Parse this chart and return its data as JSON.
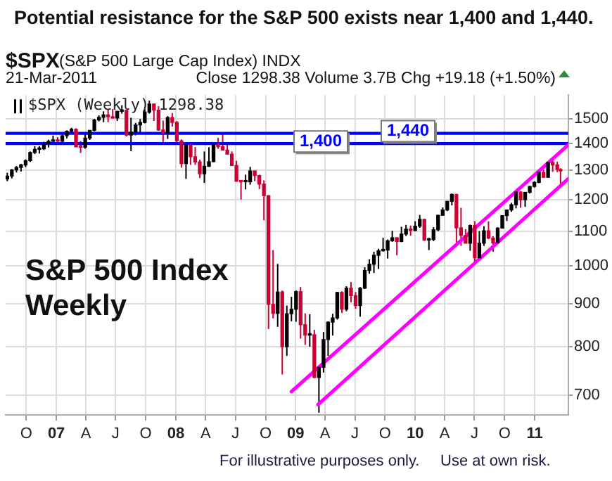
{
  "chart_data": {
    "type": "candlestick",
    "title": "Potential resistance for the S&P 500 exists near 1,400 and 1,440.",
    "annotations": [
      "$SPX",
      "(S&P 500 Large Cap Index) INDX",
      "21-Mar-2011",
      "Close 1298.38  Volume 3.7B  Chg +19.18 (+1.50%)",
      "S&P 500 Index Weekly",
      "For illustrative purposes only.",
      "Use at own risk."
    ],
    "xlim": [
      "2006-07-30",
      "2011-04-14"
    ],
    "xticks": [
      {
        "value": "2006-10-01",
        "label": "O"
      },
      {
        "value": "2007-01-01",
        "label": "07"
      },
      {
        "value": "2007-04-01",
        "label": "A"
      },
      {
        "value": "2007-07-01",
        "label": "J"
      },
      {
        "value": "2007-10-01",
        "label": "O"
      },
      {
        "value": "2008-01-01",
        "label": "08"
      },
      {
        "value": "2008-04-01",
        "label": "A"
      },
      {
        "value": "2008-07-01",
        "label": "J"
      },
      {
        "value": "2008-10-01",
        "label": "O"
      },
      {
        "value": "2009-01-01",
        "label": "09"
      },
      {
        "value": "2009-04-01",
        "label": "A"
      },
      {
        "value": "2009-07-01",
        "label": "J"
      },
      {
        "value": "2009-10-01",
        "label": "O"
      },
      {
        "value": "2010-01-01",
        "label": "10"
      },
      {
        "value": "2010-04-01",
        "label": "A"
      },
      {
        "value": "2010-07-01",
        "label": "J"
      },
      {
        "value": "2010-10-01",
        "label": "O"
      },
      {
        "value": "2011-01-01",
        "label": "11"
      }
    ],
    "ylim": [
      663,
      1600
    ],
    "yticks": [
      700,
      800,
      900,
      1000,
      1100,
      1200,
      1300,
      1400,
      1500
    ],
    "log": "y",
    "grid": true,
    "legend": "top left",
    "ref_lines": [
      {
        "axis": "y",
        "value": 1440,
        "label": "1,440",
        "color": "#0000ff"
      },
      {
        "axis": "y",
        "value": 1400,
        "label": "1,400",
        "color": "#0000ff"
      }
    ],
    "series": [
      {
        "name": "$SPX (Weekly) 1298.38",
        "x": [
          "2006-08-04",
          "2006-08-18",
          "2006-09-01",
          "2006-09-15",
          "2006-09-29",
          "2006-10-13",
          "2006-10-27",
          "2006-11-10",
          "2006-11-24",
          "2006-12-08",
          "2006-12-22",
          "2007-01-05",
          "2007-01-19",
          "2007-02-02",
          "2007-02-16",
          "2007-03-02",
          "2007-03-16",
          "2007-03-30",
          "2007-04-13",
          "2007-04-27",
          "2007-05-11",
          "2007-05-25",
          "2007-06-08",
          "2007-06-22",
          "2007-07-06",
          "2007-07-20",
          "2007-08-03",
          "2007-08-17",
          "2007-08-31",
          "2007-09-14",
          "2007-09-28",
          "2007-10-12",
          "2007-10-26",
          "2007-11-09",
          "2007-11-23",
          "2007-12-07",
          "2007-12-21",
          "2008-01-04",
          "2008-01-18",
          "2008-02-01",
          "2008-02-15",
          "2008-02-29",
          "2008-03-14",
          "2008-03-28",
          "2008-04-11",
          "2008-04-25",
          "2008-05-09",
          "2008-05-23",
          "2008-06-06",
          "2008-06-20",
          "2008-07-04",
          "2008-07-18",
          "2008-08-01",
          "2008-08-15",
          "2008-08-29",
          "2008-09-12",
          "2008-09-26",
          "2008-10-10",
          "2008-10-24",
          "2008-11-07",
          "2008-11-21",
          "2008-12-05",
          "2008-12-19",
          "2009-01-02",
          "2009-01-16",
          "2009-01-30",
          "2009-02-13",
          "2009-02-27",
          "2009-03-13",
          "2009-03-27",
          "2009-04-10",
          "2009-04-24",
          "2009-05-08",
          "2009-05-22",
          "2009-06-05",
          "2009-06-19",
          "2009-07-03",
          "2009-07-17",
          "2009-07-31",
          "2009-08-14",
          "2009-08-28",
          "2009-09-11",
          "2009-09-25",
          "2009-10-09",
          "2009-10-23",
          "2009-11-06",
          "2009-11-20",
          "2009-12-04",
          "2009-12-18",
          "2010-01-01",
          "2010-01-15",
          "2010-01-29",
          "2010-02-12",
          "2010-02-26",
          "2010-03-12",
          "2010-03-26",
          "2010-04-09",
          "2010-04-23",
          "2010-05-07",
          "2010-05-21",
          "2010-06-04",
          "2010-06-18",
          "2010-07-02",
          "2010-07-16",
          "2010-07-30",
          "2010-08-13",
          "2010-08-27",
          "2010-09-10",
          "2010-09-24",
          "2010-10-08",
          "2010-10-22",
          "2010-11-05",
          "2010-11-19",
          "2010-12-03",
          "2010-12-17",
          "2010-12-31",
          "2011-01-14",
          "2011-01-28",
          "2011-02-11",
          "2011-02-25",
          "2011-03-11",
          "2011-03-21"
        ],
        "ohlc": [
          [
            1270,
            1292,
            1262,
            1280
          ],
          [
            1280,
            1305,
            1272,
            1302
          ],
          [
            1302,
            1316,
            1293,
            1311
          ],
          [
            1311,
            1324,
            1296,
            1320
          ],
          [
            1320,
            1340,
            1312,
            1336
          ],
          [
            1336,
            1370,
            1331,
            1366
          ],
          [
            1366,
            1390,
            1360,
            1378
          ],
          [
            1378,
            1390,
            1362,
            1380
          ],
          [
            1380,
            1407,
            1375,
            1400
          ],
          [
            1400,
            1415,
            1385,
            1409
          ],
          [
            1409,
            1431,
            1402,
            1410
          ],
          [
            1410,
            1425,
            1398,
            1409
          ],
          [
            1409,
            1441,
            1405,
            1430
          ],
          [
            1430,
            1452,
            1420,
            1448
          ],
          [
            1448,
            1462,
            1440,
            1456
          ],
          [
            1456,
            1460,
            1386,
            1387
          ],
          [
            1387,
            1410,
            1364,
            1386
          ],
          [
            1386,
            1438,
            1380,
            1421
          ],
          [
            1421,
            1453,
            1414,
            1452
          ],
          [
            1452,
            1498,
            1448,
            1494
          ],
          [
            1494,
            1513,
            1488,
            1505
          ],
          [
            1505,
            1530,
            1485,
            1515
          ],
          [
            1515,
            1540,
            1485,
            1507
          ],
          [
            1507,
            1540,
            1500,
            1502
          ],
          [
            1502,
            1532,
            1490,
            1530
          ],
          [
            1530,
            1556,
            1520,
            1534
          ],
          [
            1534,
            1536,
            1427,
            1433
          ],
          [
            1433,
            1503,
            1371,
            1445
          ],
          [
            1445,
            1482,
            1432,
            1474
          ],
          [
            1474,
            1498,
            1439,
            1484
          ],
          [
            1484,
            1538,
            1480,
            1527
          ],
          [
            1527,
            1576,
            1520,
            1561
          ],
          [
            1561,
            1562,
            1490,
            1535
          ],
          [
            1535,
            1552,
            1450,
            1453
          ],
          [
            1453,
            1492,
            1406,
            1440
          ],
          [
            1440,
            1510,
            1418,
            1504
          ],
          [
            1504,
            1523,
            1467,
            1484
          ],
          [
            1484,
            1490,
            1406,
            1411
          ],
          [
            1411,
            1416,
            1310,
            1325
          ],
          [
            1325,
            1396,
            1270,
            1395
          ],
          [
            1395,
            1399,
            1320,
            1350
          ],
          [
            1350,
            1387,
            1320,
            1331
          ],
          [
            1331,
            1339,
            1273,
            1288
          ],
          [
            1288,
            1370,
            1256,
            1315
          ],
          [
            1315,
            1386,
            1313,
            1332
          ],
          [
            1332,
            1400,
            1330,
            1398
          ],
          [
            1398,
            1422,
            1380,
            1388
          ],
          [
            1388,
            1440,
            1373,
            1375
          ],
          [
            1375,
            1406,
            1358,
            1360
          ],
          [
            1360,
            1370,
            1316,
            1318
          ],
          [
            1318,
            1335,
            1260,
            1262
          ],
          [
            1262,
            1266,
            1200,
            1260
          ],
          [
            1260,
            1285,
            1234,
            1260
          ],
          [
            1260,
            1313,
            1250,
            1298
          ],
          [
            1298,
            1300,
            1262,
            1282
          ],
          [
            1282,
            1285,
            1235,
            1252
          ],
          [
            1252,
            1265,
            1133,
            1213
          ],
          [
            1213,
            1214,
            840,
            899
          ],
          [
            899,
            1044,
            865,
            877
          ],
          [
            877,
            1005,
            845,
            930
          ],
          [
            930,
            934,
            741,
            800
          ],
          [
            800,
            896,
            780,
            876
          ],
          [
            876,
            918,
            858,
            887
          ],
          [
            887,
            934,
            857,
            931
          ],
          [
            931,
            943,
            818,
            850
          ],
          [
            850,
            877,
            804,
            826
          ],
          [
            826,
            875,
            800,
            827
          ],
          [
            827,
            838,
            734,
            735
          ],
          [
            735,
            759,
            667,
            756
          ],
          [
            756,
            833,
            745,
            816
          ],
          [
            816,
            858,
            780,
            856
          ],
          [
            856,
            876,
            825,
            866
          ],
          [
            866,
            930,
            862,
            929
          ],
          [
            929,
            932,
            878,
            887
          ],
          [
            887,
            945,
            882,
            940
          ],
          [
            940,
            956,
            904,
            921
          ],
          [
            921,
            930,
            888,
            896
          ],
          [
            896,
            943,
            869,
            940
          ],
          [
            940,
            996,
            938,
            987
          ],
          [
            987,
            1018,
            978,
            1004
          ],
          [
            1004,
            1039,
            980,
            1029
          ],
          [
            1029,
            1048,
            991,
            1042
          ],
          [
            1042,
            1080,
            1040,
            1044
          ],
          [
            1044,
            1075,
            1020,
            1071
          ],
          [
            1071,
            1101,
            1068,
            1080
          ],
          [
            1080,
            1081,
            1029,
            1069
          ],
          [
            1069,
            1113,
            1067,
            1091
          ],
          [
            1091,
            1119,
            1085,
            1106
          ],
          [
            1106,
            1117,
            1086,
            1102
          ],
          [
            1102,
            1130,
            1100,
            1115
          ],
          [
            1115,
            1150,
            1110,
            1136
          ],
          [
            1136,
            1138,
            1071,
            1073
          ],
          [
            1073,
            1080,
            1044,
            1075
          ],
          [
            1075,
            1112,
            1070,
            1104
          ],
          [
            1104,
            1150,
            1100,
            1149
          ],
          [
            1149,
            1174,
            1148,
            1166
          ],
          [
            1166,
            1195,
            1162,
            1194
          ],
          [
            1194,
            1220,
            1181,
            1217
          ],
          [
            1217,
            1219,
            1066,
            1110
          ],
          [
            1110,
            1173,
            1056,
            1087
          ],
          [
            1087,
            1106,
            1064,
            1064
          ],
          [
            1064,
            1120,
            1042,
            1117
          ],
          [
            1117,
            1131,
            1011,
            1022
          ],
          [
            1022,
            1100,
            1020,
            1064
          ],
          [
            1064,
            1115,
            1056,
            1101
          ],
          [
            1101,
            1130,
            1076,
            1079
          ],
          [
            1079,
            1085,
            1039,
            1065
          ],
          [
            1065,
            1112,
            1063,
            1109
          ],
          [
            1109,
            1149,
            1108,
            1148
          ],
          [
            1148,
            1167,
            1131,
            1166
          ],
          [
            1166,
            1189,
            1160,
            1183
          ],
          [
            1183,
            1226,
            1171,
            1225
          ],
          [
            1225,
            1228,
            1173,
            1199
          ],
          [
            1199,
            1225,
            1176,
            1224
          ],
          [
            1224,
            1246,
            1220,
            1244
          ],
          [
            1244,
            1262,
            1240,
            1258
          ],
          [
            1258,
            1296,
            1255,
            1293
          ],
          [
            1293,
            1303,
            1275,
            1276
          ],
          [
            1276,
            1330,
            1274,
            1329
          ],
          [
            1329,
            1344,
            1295,
            1320
          ],
          [
            1320,
            1332,
            1294,
            1304
          ],
          [
            1304,
            1308,
            1249,
            1298
          ]
        ],
        "colors": [
          "#000000",
          "#000000",
          "#000000",
          "#000000",
          "#000000",
          "#000000",
          "#000000",
          "#000000",
          "#000000",
          "#000000",
          "#000000",
          "#cc0033",
          "#000000",
          "#000000",
          "#000000",
          "#cc0033",
          "#cc0033",
          "#000000",
          "#000000",
          "#000000",
          "#000000",
          "#000000",
          "#cc0033",
          "#cc0033",
          "#000000",
          "#000000",
          "#cc0033",
          "#000000",
          "#000000",
          "#000000",
          "#000000",
          "#000000",
          "#cc0033",
          "#cc0033",
          "#cc0033",
          "#000000",
          "#cc0033",
          "#cc0033",
          "#cc0033",
          "#000000",
          "#cc0033",
          "#cc0033",
          "#cc0033",
          "#000000",
          "#000000",
          "#000000",
          "#cc0033",
          "#cc0033",
          "#cc0033",
          "#cc0033",
          "#cc0033",
          "#cc0033",
          "#000000",
          "#000000",
          "#cc0033",
          "#cc0033",
          "#cc0033",
          "#cc0033",
          "#cc0033",
          "#000000",
          "#cc0033",
          "#000000",
          "#000000",
          "#000000",
          "#cc0033",
          "#cc0033",
          "#000000",
          "#cc0033",
          "#000000",
          "#000000",
          "#000000",
          "#000000",
          "#000000",
          "#cc0033",
          "#000000",
          "#cc0033",
          "#cc0033",
          "#000000",
          "#000000",
          "#000000",
          "#000000",
          "#000000",
          "#000000",
          "#000000",
          "#000000",
          "#cc0033",
          "#000000",
          "#000000",
          "#cc0033",
          "#000000",
          "#000000",
          "#cc0033",
          "#000000",
          "#000000",
          "#000000",
          "#000000",
          "#000000",
          "#000000",
          "#cc0033",
          "#cc0033",
          "#cc0033",
          "#000000",
          "#cc0033",
          "#000000",
          "#000000",
          "#cc0033",
          "#cc0033",
          "#000000",
          "#000000",
          "#000000",
          "#000000",
          "#000000",
          "#cc0033",
          "#000000",
          "#000000",
          "#000000",
          "#000000",
          "#cc0033",
          "#000000",
          "#cc0033",
          "#cc0033",
          "#cc0033"
        ]
      },
      {
        "type": "line",
        "color": "#ff00ff",
        "x": [
          "2008-12-19",
          "2011-04-14"
        ],
        "values": [
          707,
          1395
        ]
      },
      {
        "type": "line",
        "color": "#ff00ff",
        "x": [
          "2009-03-10",
          "2011-04-14"
        ],
        "values": [
          682,
          1271
        ]
      }
    ]
  }
}
